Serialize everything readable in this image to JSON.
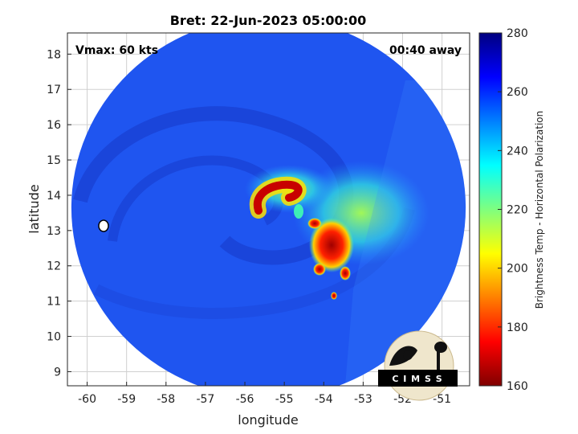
{
  "figure": {
    "title": "Bret: 22-Jun-2023 05:00:00",
    "vmax_label": "Vmax: 60 kts",
    "time_label": "00:40 away",
    "logo_text": "C I M S S"
  },
  "chart_data": {
    "type": "heatmap",
    "title": "Bret: 22-Jun-2023 05:00:00",
    "xlabel": "longitude",
    "ylabel": "latitude",
    "xlim": [
      -60.5,
      -50.3
    ],
    "ylim": [
      8.6,
      18.6
    ],
    "x_ticks": [
      -60,
      -59,
      -58,
      -57,
      -56,
      -55,
      -54,
      -53,
      -52,
      -51
    ],
    "y_ticks": [
      9,
      10,
      11,
      12,
      13,
      14,
      15,
      16,
      17,
      18
    ],
    "x_tick_labels": [
      "-60",
      "-59",
      "-58",
      "-57",
      "-56",
      "-55",
      "-54",
      "-53",
      "-52",
      "-51"
    ],
    "y_tick_labels": [
      "9",
      "10",
      "11",
      "12",
      "13",
      "14",
      "15",
      "16",
      "17",
      "18"
    ],
    "grid": true,
    "colorbar": {
      "label": "Brightness Temp - Horizontal Polarization",
      "range": [
        160,
        280
      ],
      "ticks": [
        160,
        180,
        200,
        220,
        240,
        260,
        280
      ],
      "tick_labels": [
        "160",
        "180",
        "200",
        "220",
        "240",
        "260",
        "280"
      ],
      "colormap": "jet",
      "placement": "right"
    },
    "swath": {
      "shape": "disk",
      "center": [
        -55.4,
        13.65
      ],
      "radius_deg": 5.0,
      "background_value": 258
    },
    "features": [
      {
        "name": "warm-eyewall-arc",
        "lon": -55.2,
        "lat": 14.0,
        "value": 178
      },
      {
        "name": "cold-cell-cluster",
        "lon": -53.8,
        "lat": 12.6,
        "value": 175
      },
      {
        "name": "rainband-east",
        "lon": -53.0,
        "lat": 13.8,
        "value": 238
      },
      {
        "name": "island-marker",
        "lon": -59.6,
        "lat": 13.15,
        "value": 280
      }
    ]
  }
}
